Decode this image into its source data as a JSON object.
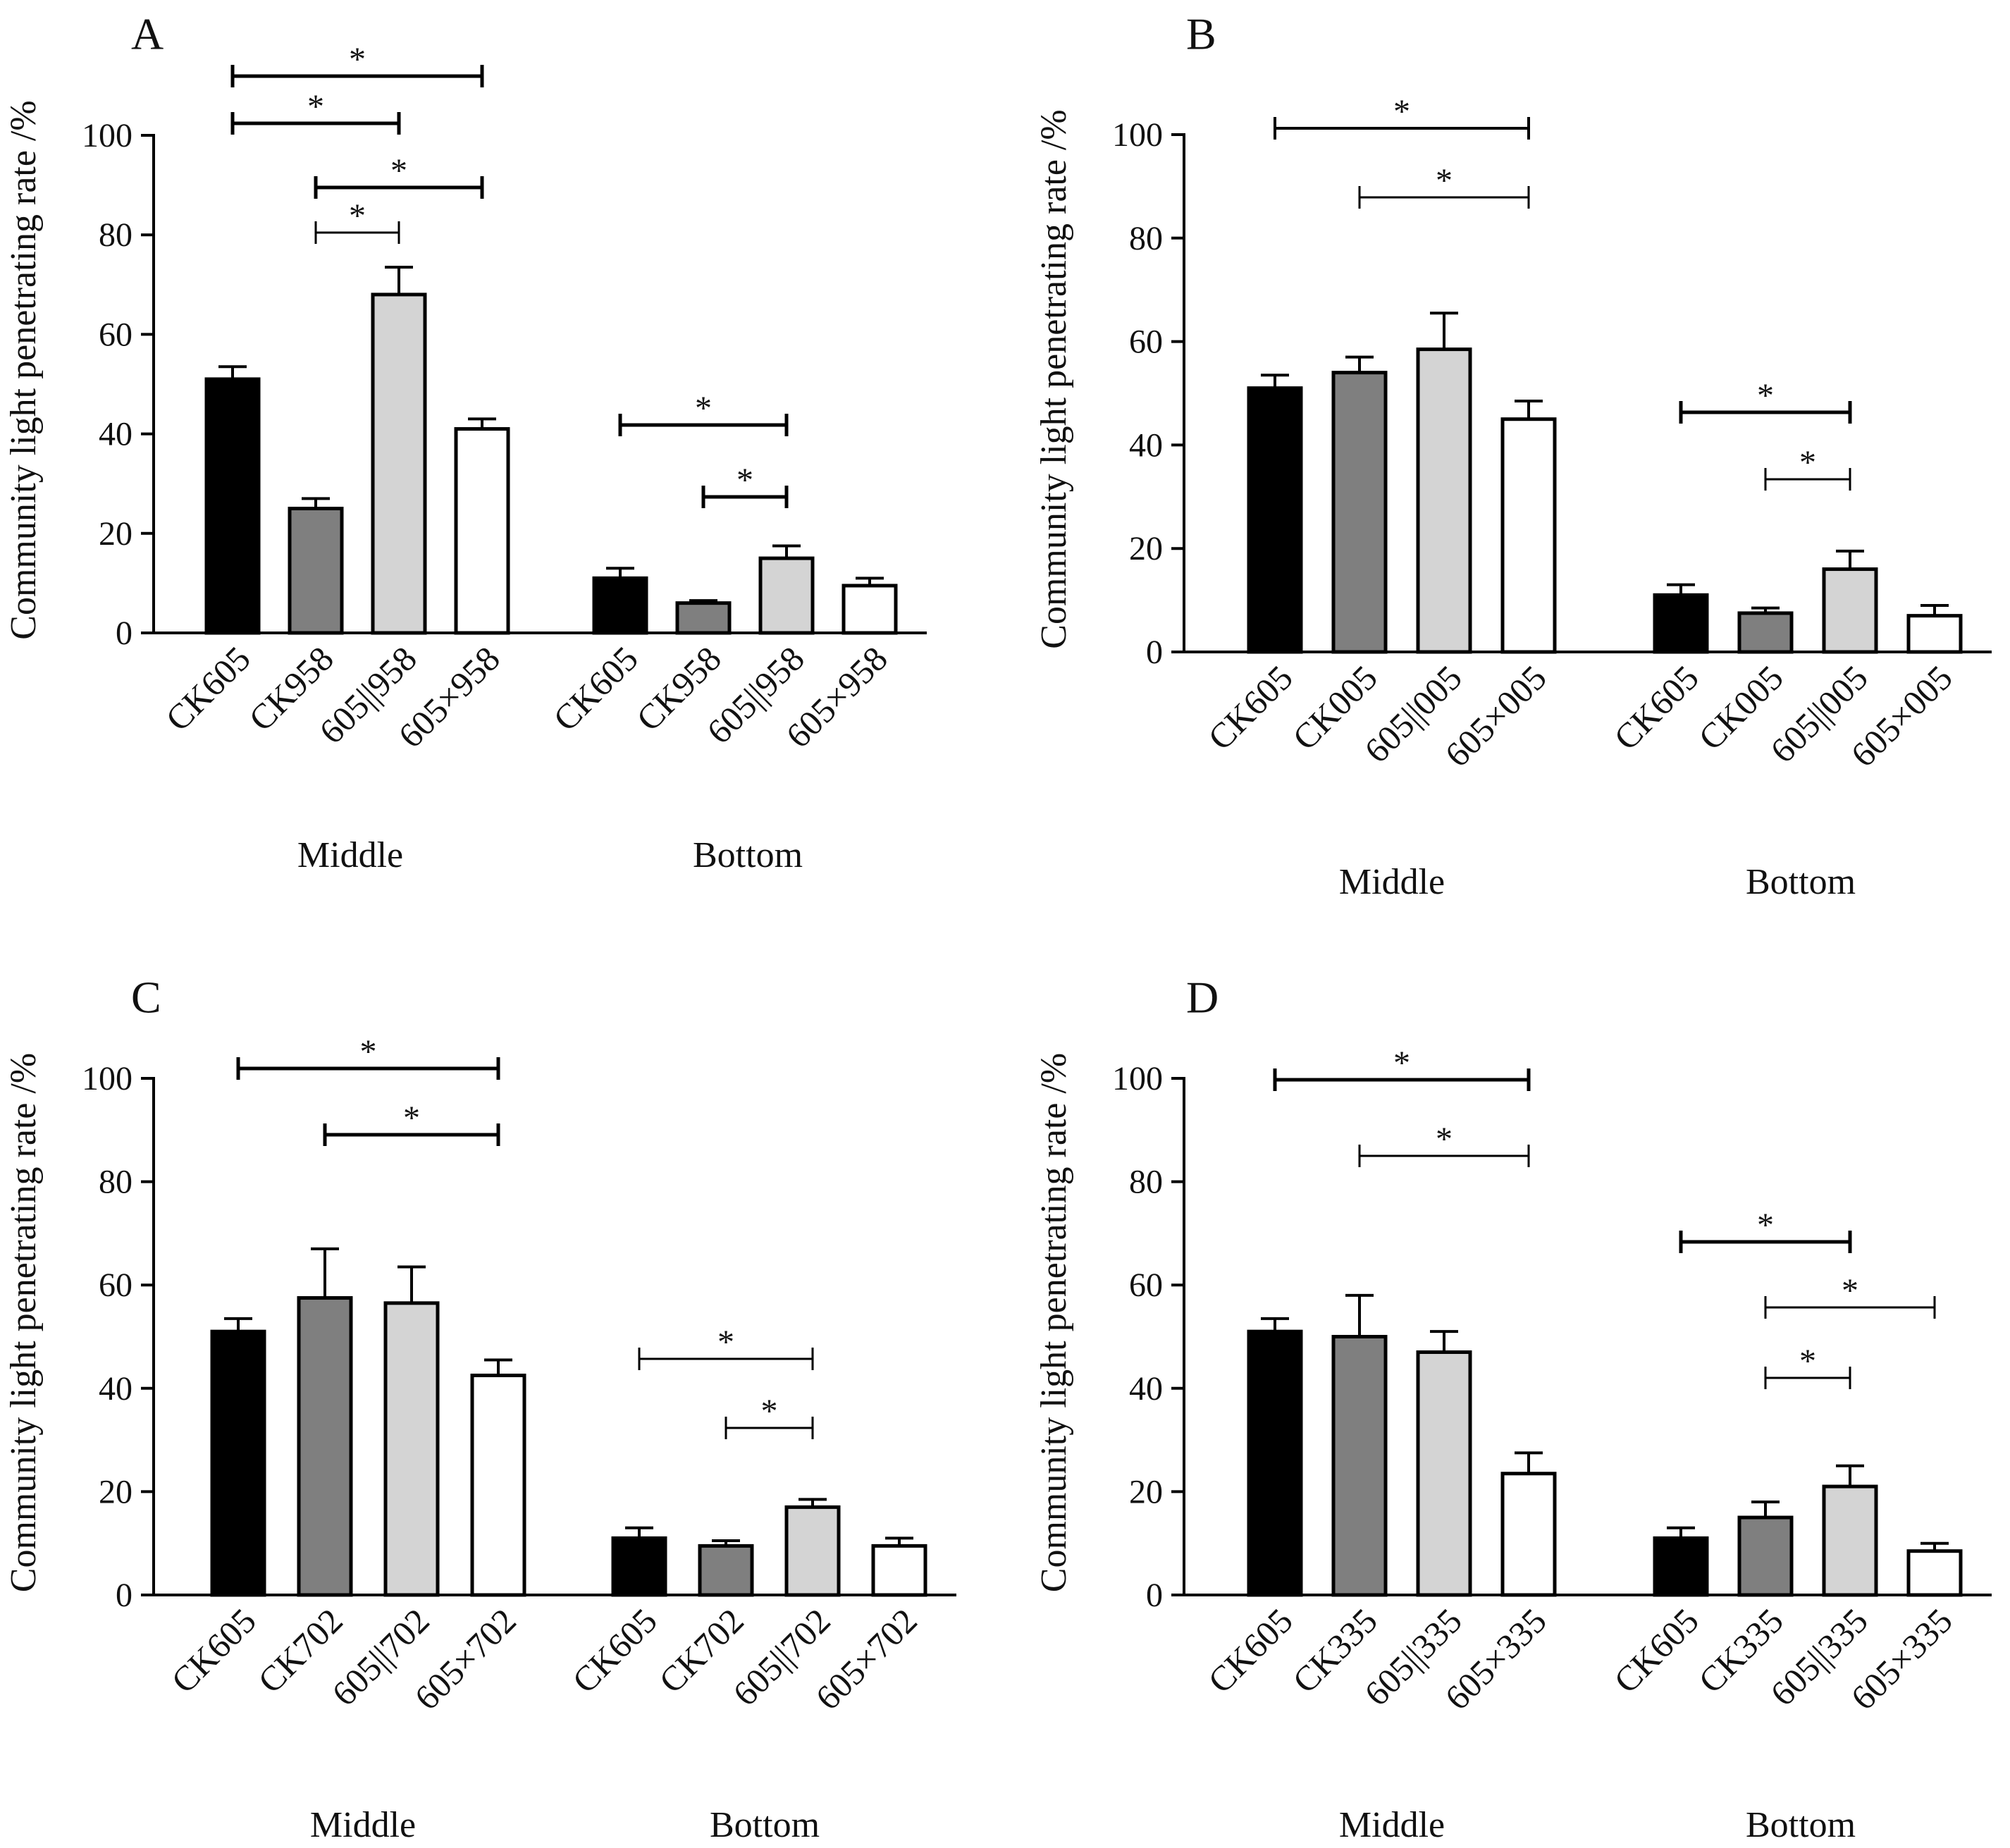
{
  "chart_data": [
    {
      "type": "bar",
      "panel_label": "A",
      "ylabel": "Community light penetrating rate /%",
      "ylim": [
        0,
        100
      ],
      "yticks": [
        "0",
        "20",
        "40",
        "60",
        "80",
        "100"
      ],
      "groups": [
        {
          "name": "Middle",
          "categories": [
            "CK605",
            "CK958",
            "605||958",
            "605×958"
          ],
          "values": [
            51,
            25,
            68,
            41
          ],
          "errors": [
            2.5,
            2,
            5.5,
            2
          ]
        },
        {
          "name": "Bottom",
          "categories": [
            "CK605",
            "CK958",
            "605||958",
            "605×958"
          ],
          "values": [
            11,
            6,
            15,
            9.5
          ],
          "errors": [
            2,
            0.5,
            2.5,
            1.5
          ]
        }
      ],
      "series_colors": [
        "#000000",
        "#7f7f7f",
        "#d4d4d4",
        "#ffffff"
      ],
      "significance": [
        {
          "group": 0,
          "from": 0,
          "to": 3,
          "label": "*"
        },
        {
          "group": 0,
          "from": 0,
          "to": 2,
          "label": "*"
        },
        {
          "group": 0,
          "from": 1,
          "to": 3,
          "label": "*"
        },
        {
          "group": 0,
          "from": 1,
          "to": 2,
          "label": "*"
        },
        {
          "group": 1,
          "from": 0,
          "to": 2,
          "label": "*"
        },
        {
          "group": 1,
          "from": 1,
          "to": 2,
          "label": "*"
        }
      ]
    },
    {
      "type": "bar",
      "panel_label": "B",
      "ylabel": "Community light penetrating rate /%",
      "ylim": [
        0,
        100
      ],
      "yticks": [
        "0",
        "20",
        "40",
        "60",
        "80",
        "100"
      ],
      "groups": [
        {
          "name": "Middle",
          "categories": [
            "CK605",
            "CK005",
            "605||005",
            "605×005"
          ],
          "values": [
            51,
            54,
            58.5,
            45
          ],
          "errors": [
            2.5,
            3,
            7,
            3.5
          ]
        },
        {
          "name": "Bottom",
          "categories": [
            "CK605",
            "CK005",
            "605||005",
            "605×005"
          ],
          "values": [
            11,
            7.5,
            16,
            7
          ],
          "errors": [
            2,
            1,
            3.5,
            2
          ]
        }
      ],
      "series_colors": [
        "#000000",
        "#7f7f7f",
        "#d4d4d4",
        "#ffffff"
      ],
      "significance": [
        {
          "group": 0,
          "from": 0,
          "to": 3,
          "label": "*"
        },
        {
          "group": 0,
          "from": 1,
          "to": 3,
          "label": "*"
        },
        {
          "group": 1,
          "from": 0,
          "to": 2,
          "label": "*"
        },
        {
          "group": 1,
          "from": 1,
          "to": 2,
          "label": "*"
        }
      ]
    },
    {
      "type": "bar",
      "panel_label": "C",
      "ylabel": "Community light penetrating rate /%",
      "ylim": [
        0,
        100
      ],
      "yticks": [
        "0",
        "20",
        "40",
        "60",
        "80",
        "100"
      ],
      "groups": [
        {
          "name": "Middle",
          "categories": [
            "CK605",
            "CK702",
            "605||702",
            "605×702"
          ],
          "values": [
            51,
            57.5,
            56.5,
            42.5
          ],
          "errors": [
            2.5,
            9.5,
            7,
            3
          ]
        },
        {
          "name": "Bottom",
          "categories": [
            "CK605",
            "CK702",
            "605||702",
            "605×702"
          ],
          "values": [
            11,
            9.5,
            17,
            9.5
          ],
          "errors": [
            2,
            1,
            1.5,
            1.5
          ]
        }
      ],
      "series_colors": [
        "#000000",
        "#7f7f7f",
        "#d4d4d4",
        "#ffffff"
      ],
      "significance": [
        {
          "group": 0,
          "from": 0,
          "to": 3,
          "label": "*"
        },
        {
          "group": 0,
          "from": 1,
          "to": 3,
          "label": "*"
        },
        {
          "group": 1,
          "from": 0,
          "to": 2,
          "label": "*"
        },
        {
          "group": 1,
          "from": 1,
          "to": 2,
          "label": "*"
        }
      ]
    },
    {
      "type": "bar",
      "panel_label": "D",
      "ylabel": "Community light penetrating rate /%",
      "ylim": [
        0,
        100
      ],
      "yticks": [
        "0",
        "20",
        "40",
        "60",
        "80",
        "100"
      ],
      "groups": [
        {
          "name": "Middle",
          "categories": [
            "CK605",
            "CK335",
            "605||335",
            "605×335"
          ],
          "values": [
            51,
            50,
            47,
            23.5
          ],
          "errors": [
            2.5,
            8,
            4,
            4
          ]
        },
        {
          "name": "Bottom",
          "categories": [
            "CK605",
            "CK335",
            "605||335",
            "605×335"
          ],
          "values": [
            11,
            15,
            21,
            8.5
          ],
          "errors": [
            2,
            3,
            4,
            1.5
          ]
        }
      ],
      "series_colors": [
        "#000000",
        "#7f7f7f",
        "#d4d4d4",
        "#ffffff"
      ],
      "significance": [
        {
          "group": 0,
          "from": 0,
          "to": 3,
          "label": "*"
        },
        {
          "group": 0,
          "from": 1,
          "to": 3,
          "label": "*"
        },
        {
          "group": 1,
          "from": 0,
          "to": 2,
          "label": "*"
        },
        {
          "group": 1,
          "from": 1,
          "to": 3,
          "label": "*"
        },
        {
          "group": 1,
          "from": 1,
          "to": 2,
          "label": "*"
        }
      ]
    }
  ]
}
